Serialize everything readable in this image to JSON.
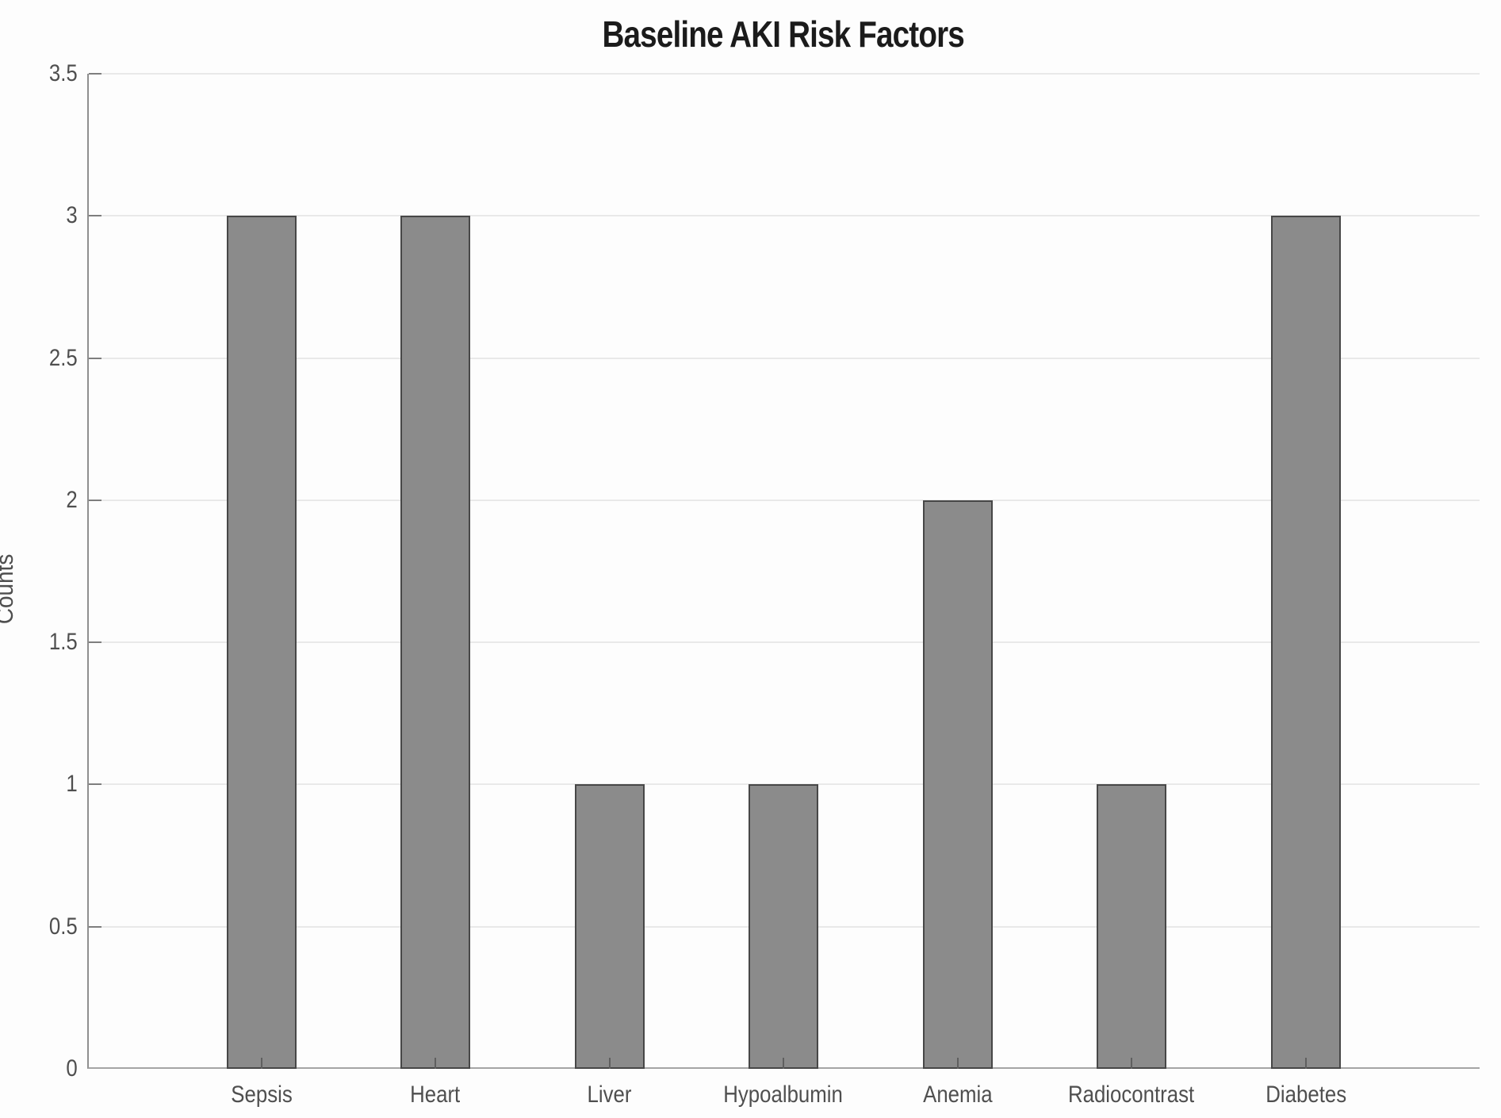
{
  "chart_data": {
    "type": "bar",
    "title": "Baseline AKI Risk Factors",
    "xlabel": "",
    "ylabel": "Counts",
    "categories": [
      "Sepsis",
      "Heart",
      "Liver",
      "Hypoalbumin",
      "Anemia",
      "Radiocontrast",
      "Diabetes"
    ],
    "values": [
      3,
      3,
      1,
      1,
      2,
      1,
      3
    ],
    "ylim": [
      0,
      3.5
    ],
    "xlim": [
      0,
      8
    ],
    "ytick_values": [
      0,
      0.5,
      1,
      1.5,
      2,
      2.5,
      3,
      3.5
    ],
    "ytick_labels": [
      "0",
      "0.5",
      "1",
      "1.5",
      "2",
      "2.5",
      "3",
      "3.5"
    ],
    "grid": true,
    "legend": false,
    "bar_width_units": 0.4,
    "colors": {
      "bar_fill": "#8b8b8b",
      "bar_edge": "#474747",
      "axis_line": "#8f8f8f",
      "gridline": "#e9e9e9",
      "tick_text": "#4f4f4f",
      "title_text": "#1b1b1b",
      "background": "#fdfdfd"
    }
  }
}
